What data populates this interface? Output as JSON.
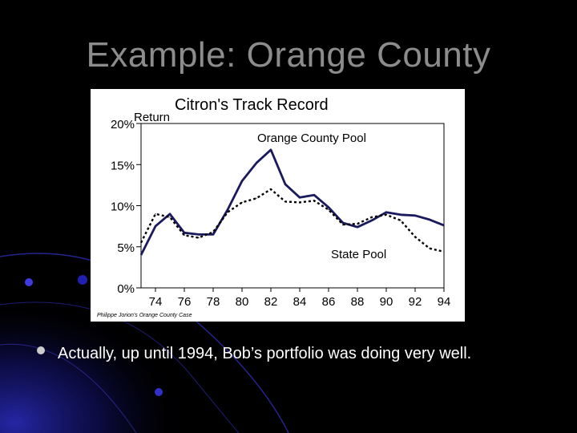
{
  "slide": {
    "title": "Example: Orange County",
    "bullet": "Actually, up until 1994, Bob’s portfolio was doing very well."
  },
  "chart_data": {
    "type": "line",
    "title": "Citron's Track Record",
    "ylabel": "Return",
    "source_note": "Philippe Jorion's Orange County Case",
    "x": [
      73,
      74,
      75,
      76,
      77,
      78,
      79,
      80,
      81,
      82,
      83,
      84,
      85,
      86,
      87,
      88,
      89,
      90,
      91,
      92,
      93,
      94
    ],
    "xlim": [
      73,
      94
    ],
    "ylim": [
      0,
      20
    ],
    "x_ticks": [
      74,
      76,
      78,
      80,
      82,
      84,
      86,
      88,
      90,
      92,
      94
    ],
    "x_tick_labels": [
      "74",
      "76",
      "78",
      "80",
      "82",
      "84",
      "86",
      "88",
      "90",
      "92",
      "94"
    ],
    "y_ticks": [
      0,
      5,
      10,
      15,
      20
    ],
    "y_tick_labels": [
      "0%",
      "5%",
      "10%",
      "15%",
      "20%"
    ],
    "series": [
      {
        "name": "Orange County Pool",
        "style": "solid",
        "color": "#1a1a5e",
        "values": [
          4.0,
          7.5,
          9.0,
          6.7,
          6.5,
          6.5,
          9.5,
          13.0,
          15.2,
          16.8,
          12.6,
          11.0,
          11.3,
          9.8,
          7.9,
          7.4,
          8.2,
          9.2,
          8.9,
          8.8,
          8.3,
          7.6
        ]
      },
      {
        "name": "State Pool",
        "style": "dotted",
        "color": "#000000",
        "values": [
          5.5,
          9.0,
          8.6,
          6.4,
          6.1,
          6.8,
          9.2,
          10.4,
          10.9,
          12.0,
          10.5,
          10.4,
          10.6,
          9.5,
          7.7,
          7.8,
          8.6,
          8.9,
          8.2,
          6.2,
          4.8,
          4.4
        ]
      }
    ],
    "series_label_positions": [
      "upper-right",
      "lower-right"
    ],
    "grid": false
  },
  "colors": {
    "background": "#000000",
    "title": "#8c8c8c",
    "bullet_text": "#ffffff",
    "accent_blue": "#1a1ad0"
  }
}
